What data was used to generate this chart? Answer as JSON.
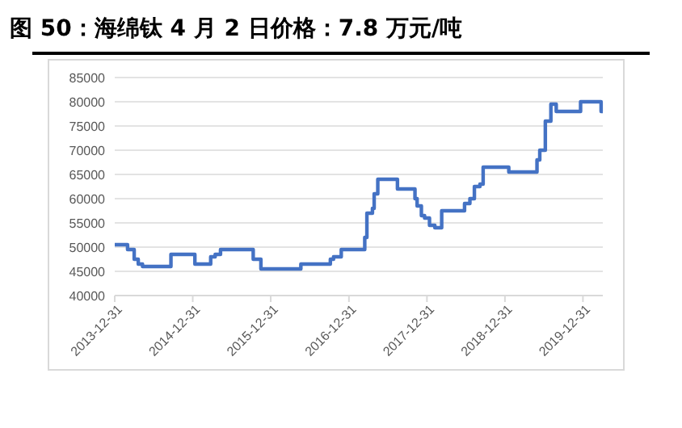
{
  "chart_data": {
    "type": "step",
    "title": "图 50：海绵钛 4 月 2 日价格：7.8 万元/吨",
    "x": [
      "2013-12-31",
      "2014-03-01",
      "2014-04-01",
      "2014-04-20",
      "2014-05-10",
      "2014-09-20",
      "2015-01-10",
      "2015-03-25",
      "2015-04-15",
      "2015-05-10",
      "2015-10-10",
      "2015-11-15",
      "2016-05-20",
      "2016-10-05",
      "2016-10-20",
      "2016-11-25",
      "2017-02-20",
      "2017-03-15",
      "2017-03-25",
      "2017-04-20",
      "2017-04-28",
      "2017-05-15",
      "2017-08-15",
      "2017-11-05",
      "2017-11-15",
      "2017-12-05",
      "2017-12-20",
      "2018-01-12",
      "2018-02-06",
      "2018-03-10",
      "2018-03-20",
      "2018-06-25",
      "2018-07-20",
      "2018-08-10",
      "2018-09-05",
      "2018-09-20",
      "2019-01-18",
      "2019-05-30",
      "2019-06-12",
      "2019-07-08",
      "2019-08-03",
      "2019-08-28",
      "2019-12-20",
      "2020-03-25",
      "2020-04-02"
    ],
    "values": [
      50500,
      49500,
      47500,
      46500,
      46000,
      48500,
      46500,
      48000,
      48500,
      49500,
      47500,
      45500,
      46500,
      47500,
      48000,
      49500,
      49500,
      52000,
      57000,
      58000,
      61000,
      64000,
      62000,
      60000,
      58500,
      56500,
      56000,
      54500,
      54000,
      57500,
      57500,
      59000,
      60000,
      62500,
      63000,
      66500,
      65500,
      68000,
      70000,
      76000,
      79500,
      78000,
      80000,
      78000,
      78000
    ],
    "color": "#4472c4",
    "xlim": [
      "2013-12-31",
      "2020-04-02"
    ],
    "xticks": [
      "2013-12-31",
      "2014-12-31",
      "2015-12-31",
      "2016-12-31",
      "2017-12-31",
      "2018-12-31",
      "2019-12-31"
    ],
    "ylim": [
      40000,
      85000
    ],
    "yticks": [
      40000,
      45000,
      50000,
      55000,
      60000,
      65000,
      70000,
      75000,
      80000,
      85000
    ],
    "grid": "y"
  }
}
